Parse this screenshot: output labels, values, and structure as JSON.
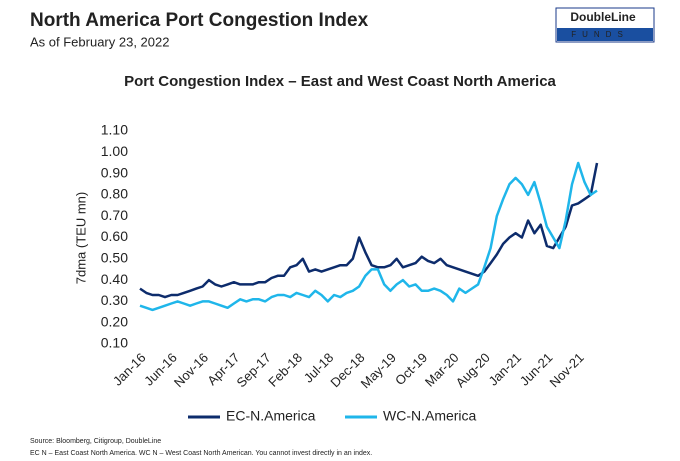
{
  "header": {
    "title": "North America Port Congestion Index",
    "subtitle": "As of February 23, 2022",
    "logo_top": "DoubleLine",
    "logo_bottom": "FUNDS"
  },
  "chart_data": {
    "type": "line",
    "title": "Port Congestion Index – East and West Coast North America",
    "ylabel": "7dma (TEU mn)",
    "categories": [
      "Jan-16",
      null,
      null,
      null,
      null,
      "Jun-16",
      null,
      null,
      null,
      null,
      "Nov-16",
      null,
      null,
      null,
      null,
      "Apr-17",
      null,
      null,
      null,
      null,
      "Sep-17",
      null,
      null,
      null,
      null,
      "Feb-18",
      null,
      null,
      null,
      null,
      "Jul-18",
      null,
      null,
      null,
      null,
      "Dec-18",
      null,
      null,
      null,
      null,
      "May-19",
      null,
      null,
      null,
      null,
      "Oct-19",
      null,
      null,
      null,
      null,
      "Mar-20",
      null,
      null,
      null,
      null,
      "Aug-20",
      null,
      null,
      null,
      null,
      "Jan-21",
      null,
      null,
      null,
      null,
      "Jun-21",
      null,
      null,
      null,
      null,
      "Nov-21",
      null,
      null,
      null
    ],
    "series": [
      {
        "name": "EC-N.America",
        "color": "#0d2c6c",
        "values": [
          0.36,
          0.34,
          0.33,
          0.33,
          0.32,
          0.33,
          0.33,
          0.34,
          0.35,
          0.36,
          0.37,
          0.4,
          0.38,
          0.37,
          0.38,
          0.39,
          0.38,
          0.38,
          0.38,
          0.39,
          0.39,
          0.41,
          0.42,
          0.42,
          0.46,
          0.47,
          0.5,
          0.44,
          0.45,
          0.44,
          0.45,
          0.46,
          0.47,
          0.47,
          0.5,
          0.6,
          0.53,
          0.47,
          0.46,
          0.46,
          0.47,
          0.5,
          0.46,
          0.47,
          0.48,
          0.51,
          0.49,
          0.48,
          0.5,
          0.47,
          0.46,
          0.45,
          0.44,
          0.43,
          0.42,
          0.44,
          0.48,
          0.52,
          0.57,
          0.6,
          0.62,
          0.6,
          0.68,
          0.62,
          0.66,
          0.56,
          0.55,
          0.6,
          0.65,
          0.75,
          0.76,
          0.78,
          0.8,
          0.95
        ]
      },
      {
        "name": "WC-N.America",
        "color": "#1fb6ea",
        "values": [
          0.28,
          0.27,
          0.26,
          0.27,
          0.28,
          0.29,
          0.3,
          0.29,
          0.28,
          0.29,
          0.3,
          0.3,
          0.29,
          0.28,
          0.27,
          0.29,
          0.31,
          0.3,
          0.31,
          0.31,
          0.3,
          0.32,
          0.33,
          0.33,
          0.32,
          0.34,
          0.33,
          0.32,
          0.35,
          0.33,
          0.3,
          0.33,
          0.32,
          0.34,
          0.35,
          0.37,
          0.42,
          0.45,
          0.45,
          0.38,
          0.35,
          0.38,
          0.4,
          0.37,
          0.38,
          0.35,
          0.35,
          0.36,
          0.35,
          0.33,
          0.3,
          0.36,
          0.34,
          0.36,
          0.38,
          0.46,
          0.55,
          0.7,
          0.78,
          0.85,
          0.88,
          0.85,
          0.8,
          0.86,
          0.76,
          0.65,
          0.6,
          0.55,
          0.68,
          0.85,
          0.95,
          0.86,
          0.8,
          0.82
        ]
      }
    ],
    "ylim": [
      0.1,
      1.1
    ],
    "yticks": [
      {
        "value": 0.1,
        "label": "0.10"
      },
      {
        "value": 0.2,
        "label": "0.20"
      },
      {
        "value": 0.3,
        "label": "0.30"
      },
      {
        "value": 0.4,
        "label": "0.40"
      },
      {
        "value": 0.5,
        "label": "0.50"
      },
      {
        "value": 0.6,
        "label": "0.60"
      },
      {
        "value": 0.7,
        "label": "0.70"
      },
      {
        "value": 0.8,
        "label": "0.80"
      },
      {
        "value": 0.9,
        "label": "0.90"
      },
      {
        "value": 1.0,
        "label": "1.00"
      },
      {
        "value": 1.1,
        "label": "1.10"
      }
    ],
    "grid": false,
    "legend": "bottom"
  },
  "footer": {
    "source": "Source: Bloomberg, Citigroup, DoubleLine",
    "note": "EC N – East Coast North America. WC N – West Coast North American. You cannot invest directly in an index."
  }
}
